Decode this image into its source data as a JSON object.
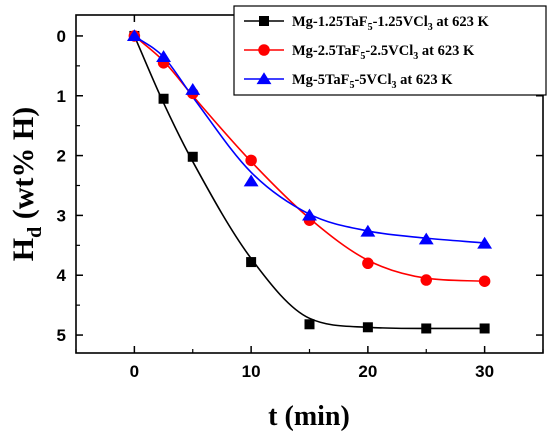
{
  "chart_data": {
    "type": "line",
    "xlabel": "t (min)",
    "ylabel_main": "H",
    "ylabel_sub": "d",
    "ylabel_rest": " (wt% H)",
    "xlim": [
      -5,
      35
    ],
    "ylim": [
      5.3,
      -0.35
    ],
    "y_inverted": true,
    "x_ticks": [
      0,
      10,
      20,
      30
    ],
    "y_ticks": [
      0,
      1,
      2,
      3,
      4,
      5
    ],
    "grid": false,
    "legend_position": "top-right",
    "series": [
      {
        "name_parts": [
          "Mg-1.25TaF",
          "5",
          "-1.25VCl",
          "3",
          " at 623 K"
        ],
        "color": "#000000",
        "marker": "square",
        "x": [
          0,
          2.5,
          5,
          10,
          15,
          20,
          25,
          30
        ],
        "y": [
          0,
          1.05,
          2.02,
          3.78,
          4.82,
          4.87,
          4.89,
          4.89
        ],
        "fit_y": [
          0,
          1.12,
          2.1,
          3.72,
          4.72,
          4.87,
          4.89,
          4.89
        ]
      },
      {
        "name_parts": [
          "Mg-2.5TaF",
          "5",
          "-2.5VCl",
          "3",
          " at 623 K"
        ],
        "color": "#ff0000",
        "marker": "circle",
        "x": [
          0,
          2.5,
          5,
          10,
          15,
          20,
          25,
          30
        ],
        "y": [
          0,
          0.45,
          0.96,
          2.08,
          3.08,
          3.8,
          4.08,
          4.1
        ],
        "fit_y": [
          0,
          0.42,
          1.0,
          2.1,
          3.05,
          3.75,
          4.05,
          4.1
        ]
      },
      {
        "name_parts": [
          "Mg-5TaF",
          "5",
          "-5VCl",
          "3",
          " at 623 K"
        ],
        "color": "#0000ff",
        "marker": "triangle",
        "x": [
          0,
          2.5,
          5,
          10,
          15,
          20,
          25,
          30
        ],
        "y": [
          0,
          0.35,
          0.9,
          2.43,
          3.0,
          3.27,
          3.4,
          3.47
        ],
        "fit_y": [
          0,
          0.35,
          1.02,
          2.28,
          2.98,
          3.26,
          3.38,
          3.46
        ]
      }
    ]
  }
}
